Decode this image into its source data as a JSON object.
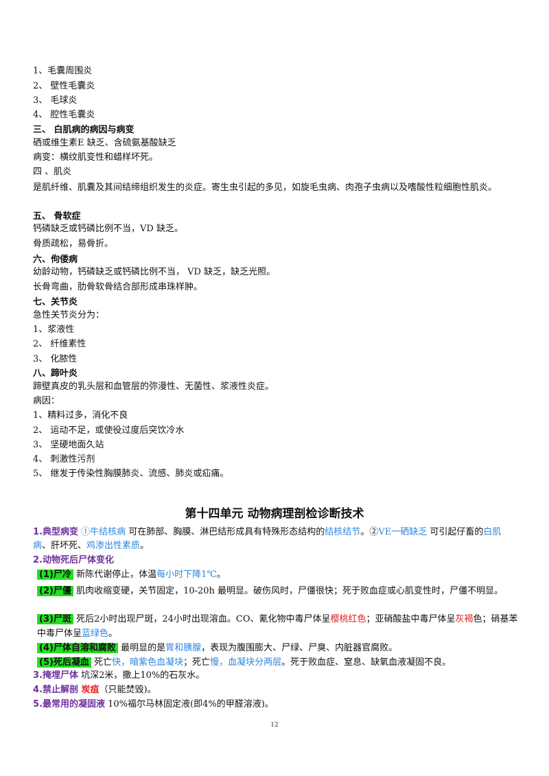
{
  "lines_top": [
    {
      "text": "1、毛囊周围炎",
      "bold": false
    },
    {
      "text": "2、 壁性毛囊炎",
      "bold": false
    },
    {
      "text": "3、 毛球炎",
      "bold": false
    },
    {
      "text": "4、 腔性毛囊炎",
      "bold": false
    },
    {
      "text": "三、  白肌病的病因与病变",
      "bold": true
    },
    {
      "text": "硒或维生素E 缺乏、含硫氨基酸缺乏",
      "bold": false
    },
    {
      "text": "病变：横纹肌变性和蜡样坏死。",
      "bold": false
    },
    {
      "text": "四 、肌炎",
      "bold": false
    }
  ],
  "myositis_desc": "是肌纤维、肌囊及其间结缔组织发生的炎症。寄生虫引起的多见，如旋毛虫病、肉孢子虫病以及嗜酸性粒细胞性肌炎。",
  "lines_mid": [
    {
      "text": "五、  骨软症",
      "bold": true
    },
    {
      "text": "钙磷缺乏或钙磷比例不当，VD 缺乏。",
      "bold": false
    },
    {
      "text": "骨质疏松，易骨折。",
      "bold": false
    },
    {
      "text": "六、佝偻病",
      "bold": true
    },
    {
      "text": "幼龄动物，钙磷缺乏或钙磷比例不当， VD 缺乏，缺乏光照。",
      "bold": false
    },
    {
      "text": "长骨弯曲，肋骨软骨结合部形成串珠样肿。",
      "bold": false
    },
    {
      "text": "七、关节炎",
      "bold": true
    },
    {
      "text": "急性关节炎分为：",
      "bold": false
    },
    {
      "text": "1、浆液性",
      "bold": false
    },
    {
      "text": "2、 纤维素性",
      "bold": false
    },
    {
      "text": "3、 化脓性",
      "bold": false
    },
    {
      "text": "八、蹄叶炎",
      "bold": true
    },
    {
      "text": "蹄壁真皮的乳头层和血管层的弥漫性、无菌性、浆液性炎症。",
      "bold": false
    },
    {
      "text": "病因：",
      "bold": false
    },
    {
      "text": "1、精料过多，消化不良",
      "bold": false
    },
    {
      "text": "2、 运动不足，或使役过度后突饮冷水",
      "bold": false
    },
    {
      "text": "3、 坚硬地面久站",
      "bold": false
    },
    {
      "text": "4、 刺激性污剂",
      "bold": false
    },
    {
      "text": "5、 继发于传染性胸膜肺炎、流感、肺炎或疝痛。",
      "bold": false
    }
  ],
  "unit_title": "第十四单元   动物病理剖检诊断技术",
  "s1": {
    "label": "1.典型病变",
    "a1": "①牛结核病",
    "t1": " 可在肺部、胸膜、淋巴结形成具有特殊形态结构的",
    "a2": "结核结节",
    "t2": "。②",
    "a3": "VE一硒缺乏",
    "t3": " 可引起仔畜的",
    "a4": "白肌病",
    "t4": "、肝坏死、",
    "a5": "鸡渗出性素质",
    "t5": "。"
  },
  "s2": {
    "label": "2.动物死后尸体变化",
    "item1_label": "(1)尸冷",
    "item1_t1": " 新陈代谢停止，体温",
    "item1_b1": "每小时下降1℃",
    "item1_t2": "。",
    "item2_label": "(2)尸僵",
    "item2_text": " 肌肉收缩变硬，关节固定，10-20h 最明显。破伤风时，尸僵很快；死于败血症或心肌变性时，尸僵不明显。",
    "item3_label": "(3)尸斑",
    "item3_t1": " 死后2小时出现尸斑，24小时出现溶血。CO、氰化物中毒尸体呈",
    "item3_r1": "樱桃红色",
    "item3_t2": "；亚硝酸盐中毒尸体呈",
    "item3_r2": "灰褐",
    "item3_t3": "色；硝基苯中毒尸体呈",
    "item3_b1": "蓝绿色",
    "item3_t4": "。",
    "item4_label": "(4)尸体自溶和腐败",
    "item4_t1": " 最明显的是",
    "item4_b1": "胃和胰腺",
    "item4_t2": "，表现为腹围膨大、尸绿、尸臭、内脏器官腐败。",
    "item5_label": "(5)死后凝血",
    "item5_t1": "  死亡",
    "item5_b1": "快，暗紫色血凝块",
    "item5_t2": "；死亡",
    "item5_b2": "慢，血凝块分两层",
    "item5_t3": "。死于败血症、窒息、缺氧血液凝固不良。"
  },
  "s3": {
    "label": "3.掩埋尸体",
    "text": " 坑深2米，撒上10%的石灰水。"
  },
  "s4": {
    "label": "4.禁止解剖",
    "red": " 炭疽",
    "text": "（只能焚毁)。"
  },
  "s5": {
    "label": "5.最常用的凝固液",
    "text": " 10%福尔马林固定液(即4%的甲醛溶液)。"
  },
  "page_number": "12",
  "colors": {
    "purple": "#7030a0",
    "blue": "#2e86de",
    "red": "#e02020",
    "highlight": "#22e022"
  }
}
